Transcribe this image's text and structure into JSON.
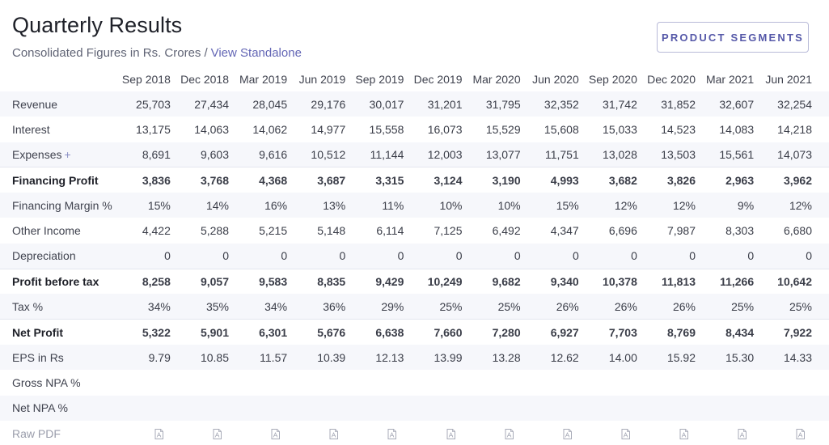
{
  "header": {
    "title": "Quarterly Results",
    "subtitle": "Consolidated Figures in Rs. Crores",
    "separator": "/",
    "view_link": "View Standalone"
  },
  "actions": {
    "product_segments": "PRODUCT SEGMENTS"
  },
  "colors": {
    "accent": "#5558a8",
    "link": "#6366b5",
    "stripe": "#f6f7fb",
    "divider": "#e3e6ef"
  },
  "table": {
    "columns": [
      "Sep 2018",
      "Dec 2018",
      "Mar 2019",
      "Jun 2019",
      "Sep 2019",
      "Dec 2019",
      "Mar 2020",
      "Jun 2020",
      "Sep 2020",
      "Dec 2020",
      "Mar 2021",
      "Jun 2021"
    ],
    "rows": [
      {
        "label": "Revenue",
        "values": [
          "25,703",
          "27,434",
          "28,045",
          "29,176",
          "30,017",
          "31,201",
          "31,795",
          "32,352",
          "31,742",
          "31,852",
          "32,607",
          "32,254"
        ]
      },
      {
        "label": "Interest",
        "values": [
          "13,175",
          "14,063",
          "14,062",
          "14,977",
          "15,558",
          "16,073",
          "15,529",
          "15,608",
          "15,033",
          "14,523",
          "14,083",
          "14,218"
        ]
      },
      {
        "label": "Expenses",
        "expand": "+",
        "values": [
          "8,691",
          "9,603",
          "9,616",
          "10,512",
          "11,144",
          "12,003",
          "13,077",
          "11,751",
          "13,028",
          "13,503",
          "15,561",
          "14,073"
        ]
      },
      {
        "label": "Financing Profit",
        "values": [
          "3,836",
          "3,768",
          "4,368",
          "3,687",
          "3,315",
          "3,124",
          "3,190",
          "4,993",
          "3,682",
          "3,826",
          "2,963",
          "3,962"
        ]
      },
      {
        "label": "Financing Margin %",
        "values": [
          "15%",
          "14%",
          "16%",
          "13%",
          "11%",
          "10%",
          "10%",
          "15%",
          "12%",
          "12%",
          "9%",
          "12%"
        ]
      },
      {
        "label": "Other Income",
        "values": [
          "4,422",
          "5,288",
          "5,215",
          "5,148",
          "6,114",
          "7,125",
          "6,492",
          "4,347",
          "6,696",
          "7,987",
          "8,303",
          "6,680"
        ]
      },
      {
        "label": "Depreciation",
        "values": [
          "0",
          "0",
          "0",
          "0",
          "0",
          "0",
          "0",
          "0",
          "0",
          "0",
          "0",
          "0"
        ]
      },
      {
        "label": "Profit before tax",
        "values": [
          "8,258",
          "9,057",
          "9,583",
          "8,835",
          "9,429",
          "10,249",
          "9,682",
          "9,340",
          "10,378",
          "11,813",
          "11,266",
          "10,642"
        ]
      },
      {
        "label": "Tax %",
        "values": [
          "34%",
          "35%",
          "34%",
          "36%",
          "29%",
          "25%",
          "25%",
          "26%",
          "26%",
          "26%",
          "25%",
          "25%"
        ]
      },
      {
        "label": "Net Profit",
        "values": [
          "5,322",
          "5,901",
          "6,301",
          "5,676",
          "6,638",
          "7,660",
          "7,280",
          "6,927",
          "7,703",
          "8,769",
          "8,434",
          "7,922"
        ]
      },
      {
        "label": "EPS in Rs",
        "values": [
          "9.79",
          "10.85",
          "11.57",
          "10.39",
          "12.13",
          "13.99",
          "13.28",
          "12.62",
          "14.00",
          "15.92",
          "15.30",
          "14.33"
        ]
      },
      {
        "label": "Gross NPA %",
        "values": [
          "",
          "",
          "",
          "",
          "",
          "",
          "",
          "",
          "",
          "",
          "",
          ""
        ]
      },
      {
        "label": "Net NPA %",
        "values": [
          "",
          "",
          "",
          "",
          "",
          "",
          "",
          "",
          "",
          "",
          "",
          ""
        ]
      }
    ],
    "raw_pdf": {
      "label": "Raw PDF",
      "icon": "pdf-file-icon"
    }
  }
}
